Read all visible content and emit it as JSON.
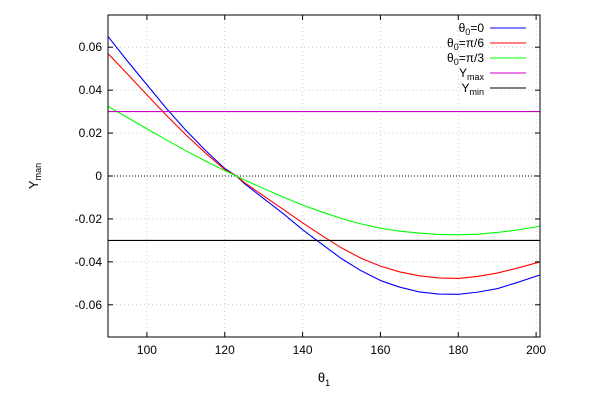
{
  "chart_data": {
    "type": "line",
    "title": "",
    "xlabel": "θ",
    "xlabel_sub": "1",
    "ylabel": "Y",
    "ylabel_sub": "man",
    "xlim": [
      90,
      201
    ],
    "ylim": [
      -0.075,
      0.075
    ],
    "xticks": [
      100,
      120,
      140,
      160,
      180,
      200
    ],
    "xtick_labels": [
      "100",
      "120",
      "140",
      "160",
      "180",
      "200"
    ],
    "yticks": [
      -0.06,
      -0.04,
      -0.02,
      0,
      0.02,
      0.04,
      0.06
    ],
    "ytick_labels": [
      "-0.06",
      "-0.04",
      "-0.02",
      "0",
      "0.02",
      "0.04",
      "0.06"
    ],
    "grid": true,
    "legend_position": "top-right",
    "series": [
      {
        "name": "θ0=0",
        "name_parts": [
          "θ",
          "0",
          "=0"
        ],
        "color": "#0000ff",
        "x": [
          90,
          95,
          100,
          105,
          110,
          115,
          120,
          123,
          125,
          130,
          135,
          140,
          145,
          150,
          155,
          160,
          165,
          170,
          175,
          180,
          185,
          190,
          195,
          200,
          201
        ],
        "y": [
          0.065,
          0.0535,
          0.0425,
          0.0315,
          0.0213,
          0.012,
          0.0035,
          0.0,
          -0.0035,
          -0.0105,
          -0.0175,
          -0.025,
          -0.0318,
          -0.0385,
          -0.0441,
          -0.0487,
          -0.0518,
          -0.054,
          -0.055,
          -0.0551,
          -0.0541,
          -0.0525,
          -0.0497,
          -0.0467,
          -0.0461
        ]
      },
      {
        "name": "θ0=π/6",
        "name_parts": [
          "θ",
          "0",
          "=π/6"
        ],
        "color": "#ff0000",
        "x": [
          90,
          95,
          100,
          105,
          110,
          115,
          120,
          123,
          125,
          130,
          135,
          140,
          145,
          150,
          155,
          160,
          165,
          170,
          175,
          180,
          185,
          190,
          195,
          200,
          201
        ],
        "y": [
          0.057,
          0.0475,
          0.0378,
          0.0283,
          0.0192,
          0.0108,
          0.003,
          0.0,
          -0.003,
          -0.0093,
          -0.0155,
          -0.0218,
          -0.0278,
          -0.0335,
          -0.0383,
          -0.042,
          -0.0447,
          -0.0465,
          -0.0475,
          -0.0477,
          -0.0468,
          -0.0452,
          -0.043,
          -0.0405,
          -0.04
        ]
      },
      {
        "name": "θ0=π/3",
        "name_parts": [
          "θ",
          "0",
          "=π/3"
        ],
        "color": "#00ff00",
        "x": [
          90,
          95,
          100,
          105,
          110,
          115,
          120,
          123,
          125,
          130,
          135,
          140,
          145,
          150,
          155,
          160,
          165,
          170,
          175,
          180,
          185,
          190,
          195,
          200,
          201
        ],
        "y": [
          0.0325,
          0.0272,
          0.022,
          0.0168,
          0.0118,
          0.007,
          0.0025,
          0.0,
          -0.0018,
          -0.0058,
          -0.0098,
          -0.0135,
          -0.0168,
          -0.0198,
          -0.0223,
          -0.0243,
          -0.0257,
          -0.0266,
          -0.0272,
          -0.0274,
          -0.0271,
          -0.0263,
          -0.0252,
          -0.0237,
          -0.0233
        ]
      },
      {
        "name": "Ymax",
        "name_parts": [
          "Y",
          "max",
          ""
        ],
        "color": "#cc00cc",
        "x": [
          90,
          201
        ],
        "y": [
          0.03,
          0.03
        ]
      },
      {
        "name": "Ymin",
        "name_parts": [
          "Y",
          "min",
          ""
        ],
        "color": "#000000",
        "x": [
          90,
          201
        ],
        "y": [
          -0.03,
          -0.03
        ]
      }
    ]
  }
}
